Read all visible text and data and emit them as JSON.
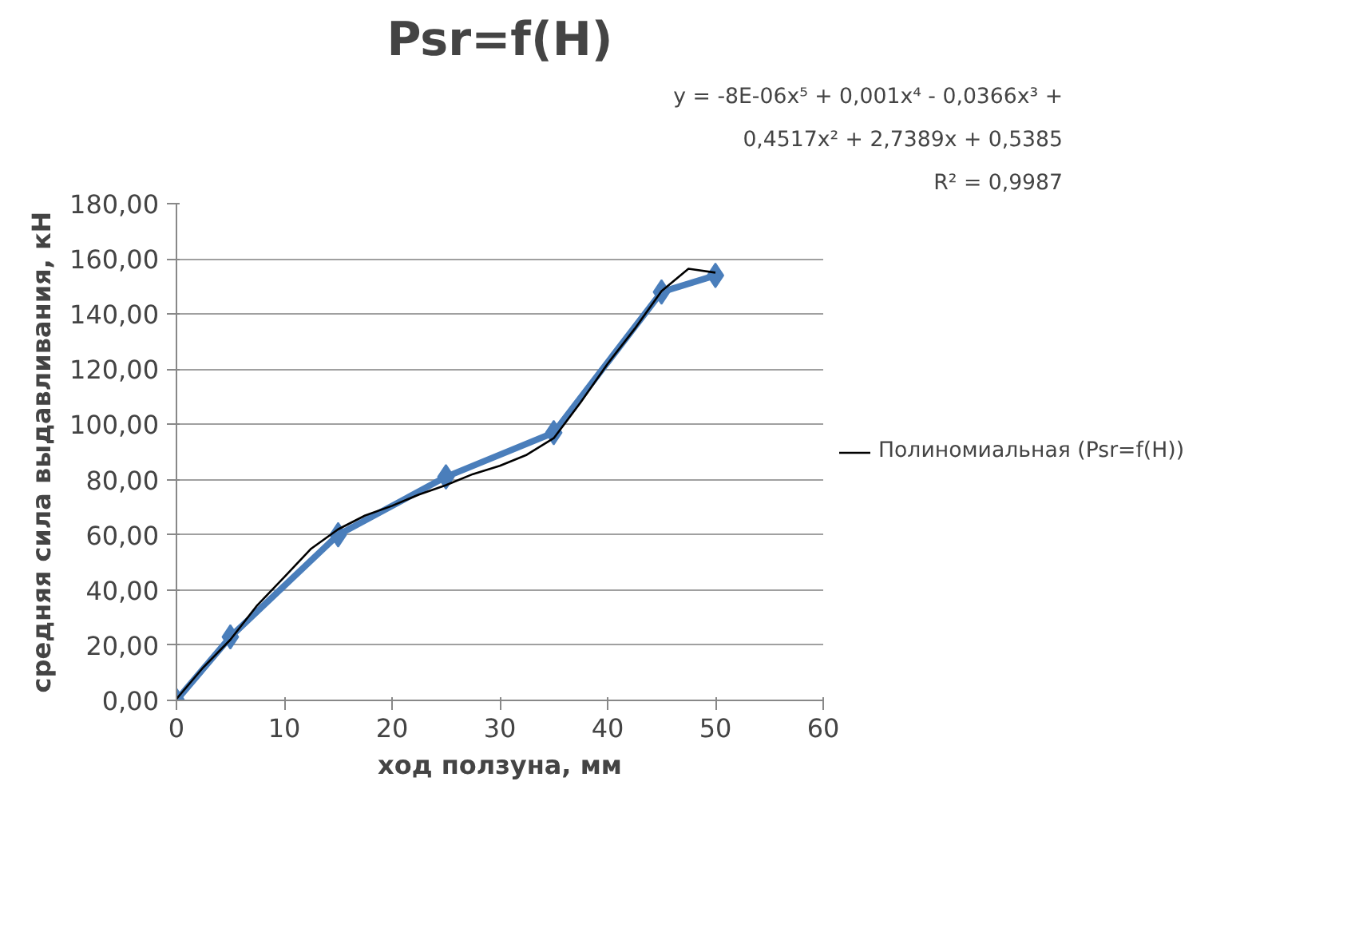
{
  "chart_data": {
    "type": "line",
    "title": "Psr=f(H)",
    "xlabel": "ход ползуна, мм",
    "ylabel": "средняя сила выдавливания, кН",
    "annotations": [
      "y = -8E-06x⁵ + 0,001x⁴ - 0,0366x³ +",
      "0,4517x² + 2,7389x + 0,5385",
      "R² = 0,9987"
    ],
    "xlim": [
      0,
      60
    ],
    "xticks": [
      0,
      10,
      20,
      30,
      40,
      50,
      60
    ],
    "ylim": [
      0,
      180
    ],
    "yticks": [
      {
        "value": 0,
        "label": "0,00"
      },
      {
        "value": 20,
        "label": "20,00"
      },
      {
        "value": 40,
        "label": "40,00"
      },
      {
        "value": 60,
        "label": "60,00"
      },
      {
        "value": 80,
        "label": "80,00"
      },
      {
        "value": 100,
        "label": "100,00"
      },
      {
        "value": 120,
        "label": "120,00"
      },
      {
        "value": 140,
        "label": "140,00"
      },
      {
        "value": 160,
        "label": "160,00"
      },
      {
        "value": 180,
        "label": "180,00"
      }
    ],
    "grid": "y",
    "legend": "right",
    "line_style": "solid",
    "series": [
      {
        "color": "#4a7ebb",
        "marker": "diamond",
        "x": [
          0,
          5,
          15,
          25,
          35,
          45,
          50
        ],
        "values": [
          0,
          23,
          60,
          81,
          97,
          148,
          154
        ]
      },
      {
        "name": "Полиномиальная (Psr=f(H))",
        "color": "#000000",
        "marker": "none",
        "x": [
          0,
          2.5,
          5,
          7.5,
          10,
          12.5,
          15,
          17.5,
          20,
          22.5,
          25,
          27.5,
          30,
          32.5,
          35,
          37.5,
          40,
          42.5,
          45,
          47.5,
          50
        ],
        "values": [
          0.5,
          12,
          22,
          34.5,
          44.7,
          55,
          62,
          67,
          70.5,
          74.6,
          78,
          82,
          85,
          89,
          95,
          108,
          122,
          134.6,
          148.3,
          156.4,
          155
        ]
      }
    ]
  }
}
